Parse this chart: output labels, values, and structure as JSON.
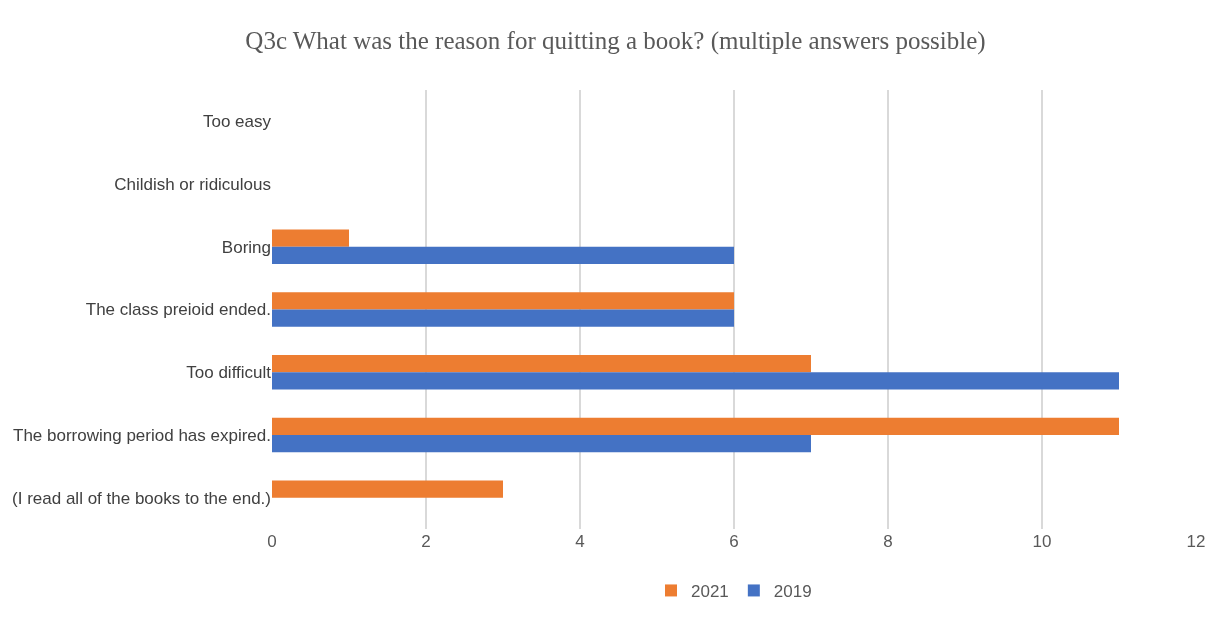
{
  "chart_data": {
    "type": "bar",
    "orientation": "horizontal",
    "title": "Q3c What was the reason for quitting a book? (multiple answers possible)",
    "categories": [
      "Too easy",
      "Childish or ridiculous",
      "Boring",
      "The class preioid ended.",
      "Too difficult",
      "The borrowing period has expired.",
      "(I read all of the books to the end.)"
    ],
    "series": [
      {
        "name": "2021",
        "color": "#ed7d31",
        "values": [
          0,
          0,
          1,
          6,
          7,
          11,
          3
        ]
      },
      {
        "name": "2019",
        "color": "#4472c4",
        "values": [
          0,
          0,
          6,
          6,
          11,
          7,
          0
        ]
      }
    ],
    "xlim": [
      0,
      12
    ],
    "xticks": [
      0,
      2,
      4,
      6,
      8,
      10,
      12
    ],
    "grid": "x",
    "legend": "bottom"
  }
}
